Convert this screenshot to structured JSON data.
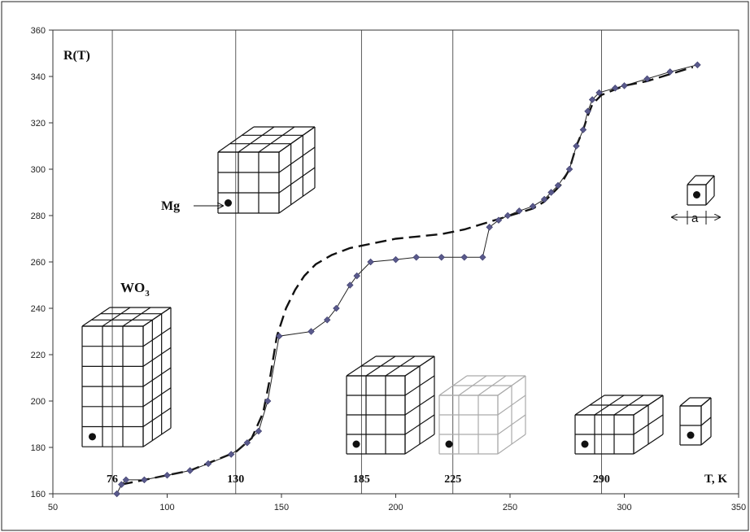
{
  "chart_data": {
    "type": "line",
    "title": "",
    "xlabel": "T, K",
    "ylabel": "R(T)",
    "xlim": [
      50,
      350
    ],
    "ylim": [
      160,
      360
    ],
    "xticks": [
      50,
      100,
      150,
      200,
      250,
      300,
      350
    ],
    "yticks": [
      160,
      180,
      200,
      220,
      240,
      260,
      280,
      300,
      320,
      340,
      360
    ],
    "grid": false,
    "series": [
      {
        "marker": "diamond",
        "color": "#5a5a8c",
        "x": [
          78,
          80,
          82,
          90,
          100,
          110,
          118,
          128,
          135,
          140,
          144,
          149,
          163,
          170,
          174,
          180,
          183,
          189,
          200,
          209,
          220,
          230,
          238,
          241,
          245,
          249,
          254,
          260,
          265,
          268,
          271,
          276,
          279,
          282,
          284,
          286,
          289,
          296,
          300,
          310,
          320,
          332
        ],
        "y": [
          160,
          164,
          166,
          166,
          168,
          170,
          173,
          177,
          182,
          187,
          200,
          228,
          230,
          235,
          240,
          250,
          254,
          260,
          261,
          262,
          262,
          262,
          262,
          275,
          278,
          280,
          282,
          284,
          287,
          290,
          293,
          300,
          310,
          317,
          325,
          330,
          333,
          335,
          336,
          339,
          342,
          345
        ]
      },
      {
        "style": "dashed",
        "color": "#111111",
        "x": [
          80,
          90,
          100,
          110,
          120,
          130,
          137,
          142,
          145,
          148,
          152,
          156,
          160,
          165,
          172,
          180,
          190,
          200,
          210,
          220,
          230,
          240,
          250,
          260,
          265,
          268,
          272,
          276,
          279,
          282,
          284,
          286,
          290,
          300,
          310,
          320,
          330
        ],
        "y": [
          164,
          166,
          168,
          170,
          174,
          178,
          184,
          195,
          210,
          228,
          240,
          248,
          254,
          259,
          263,
          266,
          268,
          270,
          271,
          272,
          274,
          277,
          280,
          283,
          286,
          289,
          293,
          300,
          310,
          317,
          323,
          328,
          332,
          336,
          338,
          341,
          344
        ]
      }
    ],
    "vertical_lines": [
      76,
      130,
      185,
      225,
      290
    ],
    "vertical_line_labels": [
      "76",
      "130",
      "185",
      "225",
      "290"
    ],
    "annotations": [
      "WO3",
      "Mg",
      "a"
    ]
  }
}
